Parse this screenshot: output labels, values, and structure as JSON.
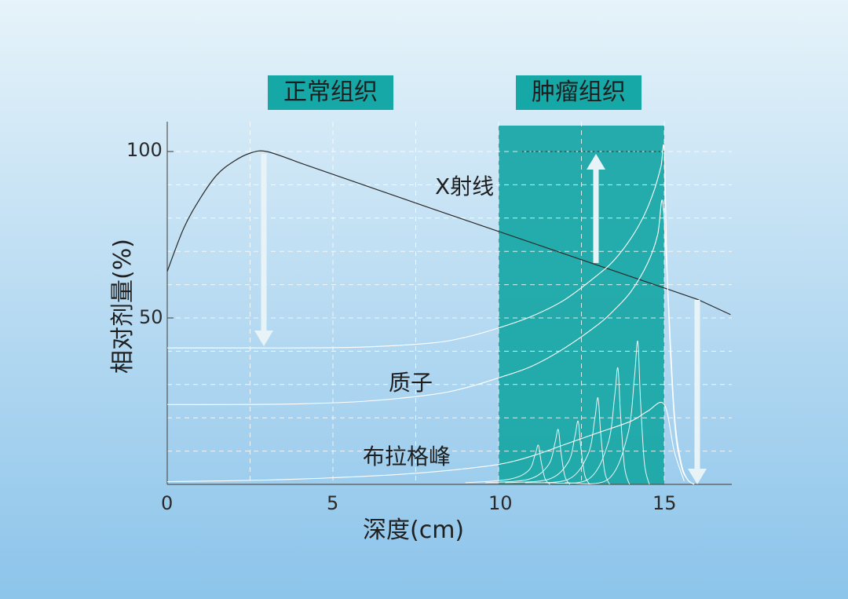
{
  "colors": {
    "background_top": "#e6f3fa",
    "background_bottom": "#8cc4ea",
    "tumor_fill": "#1ba8a6",
    "label_box": "#16a8a6",
    "grid": "#ffffff",
    "xray_line": "#2a2a2a",
    "proton_line": "#ffffff",
    "arrow": "#e8f3f7"
  },
  "labels": {
    "normal_tissue": "正常组织",
    "tumor_tissue": "肿瘤组织",
    "xray": "X射线",
    "proton": "质子",
    "bragg_peak": "布拉格峰"
  },
  "chart_data": {
    "type": "line",
    "xlabel": "深度(cm)",
    "ylabel": "相对剂量(%)",
    "xlim": [
      0,
      17
    ],
    "ylim": [
      0,
      105
    ],
    "x_ticks": [
      "0",
      "5",
      "10",
      "15"
    ],
    "x_tick_values": [
      0,
      5,
      10,
      15
    ],
    "y_ticks": [
      "50",
      "100"
    ],
    "y_tick_values": [
      50,
      100
    ],
    "grid": true,
    "highlight_region": {
      "label": "肿瘤组织",
      "x_range": [
        10,
        15
      ]
    },
    "series": [
      {
        "name": "X射线",
        "x": [
          0,
          0.5,
          1,
          1.5,
          2,
          2.5,
          3,
          4,
          6,
          8,
          10,
          12,
          14,
          15,
          16,
          17
        ],
        "y": [
          64,
          77,
          86,
          93,
          97,
          99.5,
          100,
          96.6,
          89.7,
          82.8,
          76,
          69.2,
          62.4,
          59,
          55.6,
          51
        ]
      },
      {
        "name": "质子",
        "x": [
          0,
          2,
          4,
          6,
          8,
          9,
          10,
          11,
          12,
          13,
          13.5,
          14,
          14.4,
          14.7,
          14.9,
          15,
          15.1,
          15.3,
          15.5,
          15.7,
          15.9
        ],
        "y": [
          41,
          41,
          41,
          41.3,
          42.5,
          44.2,
          47,
          50.5,
          55.5,
          63,
          67.5,
          74,
          81,
          88.5,
          95.5,
          100,
          60,
          20,
          6,
          1.5,
          0
        ]
      },
      {
        "name": "质子",
        "x": [
          0,
          2,
          4,
          6,
          8,
          9,
          10,
          11,
          12,
          13,
          13.5,
          14,
          14.5,
          14.8,
          14.95,
          15.1,
          15.3,
          15.5,
          15.7,
          15.9
        ],
        "y": [
          24,
          24,
          24.2,
          25,
          27,
          29,
          32,
          35.5,
          41,
          48,
          52.5,
          58,
          66.5,
          75,
          85,
          60,
          22,
          7,
          1.5,
          0
        ]
      },
      {
        "name": "布拉格峰",
        "x": [
          0,
          3,
          5,
          7,
          8.5,
          10,
          11,
          12,
          13,
          14,
          14.5,
          15,
          15.3,
          15.6
        ],
        "y": [
          0.8,
          1.3,
          2,
          3,
          4.2,
          6,
          8.5,
          12,
          15.5,
          19,
          22,
          24,
          10,
          1
        ]
      }
    ],
    "bragg_peaks": [
      {
        "x": 11.2,
        "peak": 11.8
      },
      {
        "x": 11.8,
        "peak": 16.5
      },
      {
        "x": 12.4,
        "peak": 19
      },
      {
        "x": 13.0,
        "peak": 26
      },
      {
        "x": 13.6,
        "peak": 35
      },
      {
        "x": 14.2,
        "peak": 43
      }
    ]
  }
}
